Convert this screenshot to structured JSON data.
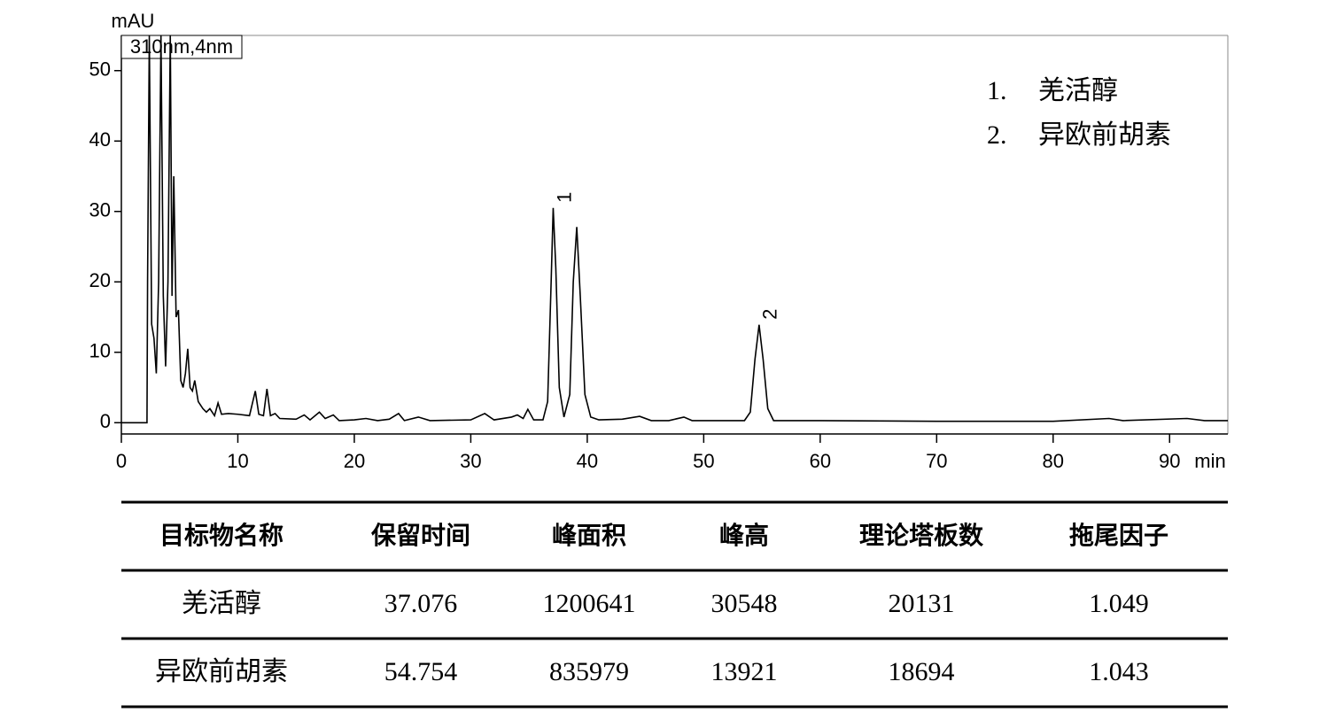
{
  "chart_data": {
    "type": "line",
    "y_label": "mAU",
    "x_label": "min",
    "annotation": "310nm,4nm",
    "x": [
      0,
      2.2,
      2.25,
      2.4,
      2.6,
      2.8,
      3.0,
      3.2,
      3.4,
      3.6,
      3.8,
      4.0,
      4.2,
      4.35,
      4.5,
      4.7,
      4.9,
      5.1,
      5.3,
      5.5,
      5.7,
      5.9,
      6.1,
      6.3,
      6.6,
      7.0,
      7.3,
      7.6,
      8.0,
      8.3,
      8.6,
      9.2,
      10,
      11,
      11.5,
      11.8,
      12.2,
      12.5,
      12.8,
      13.2,
      13.6,
      15,
      15.7,
      16.2,
      17,
      17.5,
      18.2,
      18.7,
      20,
      21,
      22,
      23,
      23.8,
      24.3,
      25.5,
      26.5,
      30,
      31.2,
      32,
      33.5,
      34,
      34.5,
      34.9,
      35.4,
      36.2,
      36.6,
      36.9,
      37.076,
      37.3,
      37.6,
      38,
      38.5,
      38.8,
      39.1,
      39.4,
      39.8,
      40.3,
      41,
      43,
      44.5,
      45.5,
      47,
      48.3,
      49,
      53.5,
      54,
      54.4,
      54.754,
      55.1,
      55.5,
      56,
      60,
      70,
      80,
      84.8,
      86,
      91.5,
      93,
      95
    ],
    "values": [
      0,
      0,
      20,
      55,
      14,
      12,
      7,
      20,
      55,
      18,
      8,
      20,
      55,
      18,
      35,
      15,
      16,
      6,
      5,
      7,
      10.5,
      5,
      4.5,
      6,
      3,
      2,
      1.5,
      2,
      1,
      2.8,
      1.2,
      1.3,
      1.2,
      1,
      4.5,
      1.2,
      1,
      4.8,
      1,
      1.3,
      0.6,
      0.5,
      1.1,
      0.4,
      1.5,
      0.6,
      1.1,
      0.3,
      0.4,
      0.6,
      0.3,
      0.5,
      1.3,
      0.3,
      0.8,
      0.3,
      0.4,
      1.3,
      0.4,
      0.8,
      1.1,
      0.6,
      1.9,
      0.4,
      0.4,
      3,
      20,
      30.5,
      22,
      5,
      0.8,
      4,
      20,
      27.8,
      18,
      4,
      0.8,
      0.4,
      0.5,
      0.9,
      0.3,
      0.3,
      0.8,
      0.3,
      0.3,
      1.5,
      9,
      13.9,
      9,
      2,
      0.3,
      0.3,
      0.2,
      0.2,
      0.6,
      0.3,
      0.6,
      0.3,
      0.3
    ],
    "color": "#000000",
    "xlim": [
      0,
      95
    ],
    "ylim": [
      -1.6,
      55
    ],
    "xticks": [
      0,
      10,
      20,
      30,
      40,
      50,
      60,
      70,
      80,
      90
    ],
    "yticks": [
      0,
      10,
      20,
      30,
      40,
      50
    ],
    "peak_labels": [
      {
        "label": "1",
        "x": 37.076,
        "y": 30.5
      },
      {
        "label": "2",
        "x": 54.754,
        "y": 13.9
      }
    ],
    "legend": [
      {
        "number": "1.",
        "name": "羌活醇"
      },
      {
        "number": "2.",
        "name": "异欧前胡素"
      }
    ]
  },
  "table": {
    "columns": [
      "目标物名称",
      "保留时间",
      "峰面积",
      "峰高",
      "理论塔板数",
      "拖尾因子"
    ],
    "rows": [
      [
        "羌活醇",
        37.076,
        1200641,
        30548,
        20131,
        1.049
      ],
      [
        "异欧前胡素",
        54.754,
        835979,
        13921,
        18694,
        1.043
      ]
    ]
  }
}
